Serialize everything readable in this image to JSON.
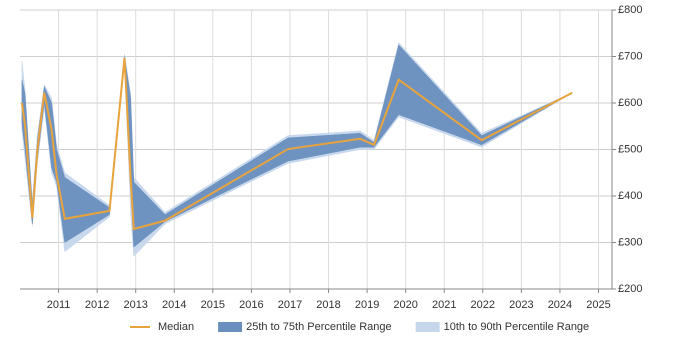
{
  "chart_data": {
    "type": "band-line",
    "x": [
      2010.05,
      2010.13,
      2010.32,
      2010.45,
      2010.63,
      2010.82,
      2010.95,
      2011.16,
      2012.32,
      2012.71,
      2012.87,
      2012.95,
      2013.76,
      2016.95,
      2018.82,
      2019.18,
      2019.82,
      2021.97,
      2024.32
    ],
    "series": [
      {
        "name": "10th to 90th Percentile Range",
        "color": "#c6d7ec",
        "lower": [
          540,
          480,
          335,
          470,
          590,
          450,
          420,
          280,
          355,
          685,
          360,
          270,
          340,
          470,
          500,
          500,
          570,
          505,
          622
        ],
        "upper": [
          690,
          630,
          390,
          530,
          640,
          610,
          510,
          450,
          380,
          705,
          620,
          440,
          365,
          530,
          540,
          520,
          730,
          535,
          622
        ]
      },
      {
        "name": "25th to 75th Percentile Range",
        "color": "#6a8fbf",
        "lower": [
          555,
          500,
          340,
          480,
          600,
          460,
          430,
          300,
          360,
          690,
          420,
          290,
          345,
          475,
          505,
          505,
          575,
          510,
          622
        ],
        "upper": [
          650,
          620,
          380,
          520,
          635,
          600,
          500,
          440,
          375,
          700,
          610,
          430,
          360,
          525,
          535,
          515,
          725,
          530,
          622
        ]
      },
      {
        "name": "Median",
        "color": "#e8a33d",
        "values": [
          600,
          552,
          353,
          499,
          622,
          542,
          445,
          351,
          368,
          697,
          435,
          329,
          347,
          501,
          523,
          510,
          650,
          520,
          622
        ]
      }
    ],
    "xlim": [
      2010.0,
      2025.35
    ],
    "xticks": [
      2011,
      2012,
      2013,
      2014,
      2015,
      2016,
      2017,
      2018,
      2019,
      2020,
      2021,
      2022,
      2023,
      2024,
      2025
    ],
    "ylim": [
      200,
      800
    ],
    "yticks": [
      {
        "value": 200,
        "label": "£200"
      },
      {
        "value": 300,
        "label": "£300"
      },
      {
        "value": 400,
        "label": "£400"
      },
      {
        "value": 500,
        "label": "£500"
      },
      {
        "value": 600,
        "label": "£600"
      },
      {
        "value": 700,
        "label": "£700"
      },
      {
        "value": 800,
        "label": "£800"
      }
    ],
    "grid": true
  }
}
